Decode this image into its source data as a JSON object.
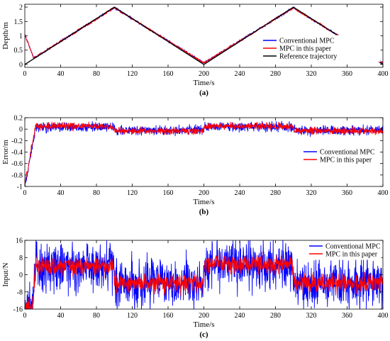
{
  "chart_data": [
    {
      "panel": "(a)",
      "type": "line",
      "xlabel": "Time/s",
      "ylabel": "Depth/m",
      "xlim": [
        0,
        400
      ],
      "ylim": [
        -0.1,
        2.1
      ],
      "xticks": [
        0,
        40,
        80,
        120,
        160,
        200,
        240,
        280,
        320,
        360,
        400
      ],
      "yticks": [
        0,
        0.5,
        1,
        1.5,
        2
      ],
      "ytick_labels": [
        "0",
        "0.5",
        "1",
        "1.5",
        "2"
      ],
      "legend_position": "right",
      "series": [
        {
          "name": "Conventional MPC",
          "color": "#0000ff",
          "x": [
            0,
            10,
            100,
            200,
            300,
            400
          ],
          "y": [
            1.05,
            0.22,
            1.98,
            0.05,
            1.98,
            0.05
          ],
          "noise": 0.02
        },
        {
          "name": "MPC in this paper",
          "color": "#ff0000",
          "x": [
            0,
            10,
            100,
            200,
            300,
            400
          ],
          "y": [
            1.05,
            0.22,
            1.98,
            0.05,
            1.98,
            0.05
          ],
          "noise": 0.02
        },
        {
          "name": "Reference trajectory",
          "color": "#000000",
          "x": [
            0,
            100,
            200,
            300,
            400
          ],
          "y": [
            0,
            2,
            0,
            2,
            0
          ],
          "noise": 0
        }
      ]
    },
    {
      "panel": "(b)",
      "type": "line",
      "xlabel": "Time/s",
      "ylabel": "Error/m",
      "xlim": [
        0,
        400
      ],
      "ylim": [
        -1,
        0.2
      ],
      "xticks": [
        0,
        40,
        80,
        120,
        160,
        200,
        240,
        280,
        320,
        360,
        400
      ],
      "yticks": [
        -1,
        -0.8,
        -0.6,
        -0.4,
        -0.2,
        0,
        0.2
      ],
      "ytick_labels": [
        "-1",
        "-0.8",
        "-0.6",
        "-0.4",
        "-0.2",
        "0",
        "0.2"
      ],
      "legend_position": "right",
      "series": [
        {
          "name": "Conventional MPC",
          "color": "#0000ff",
          "x": [
            0,
            12,
            99,
            101,
            199,
            201,
            299,
            301,
            400
          ],
          "y": [
            -1.0,
            0.03,
            0.03,
            -0.02,
            -0.02,
            0.04,
            0.04,
            -0.02,
            -0.02
          ],
          "noise": 0.04
        },
        {
          "name": "MPC in this paper",
          "color": "#ff0000",
          "x": [
            0,
            12,
            99,
            101,
            199,
            201,
            299,
            301,
            400
          ],
          "y": [
            -0.97,
            0.05,
            0.05,
            -0.03,
            -0.03,
            0.05,
            0.05,
            -0.03,
            -0.03
          ],
          "noise": 0.03
        }
      ]
    },
    {
      "panel": "(c)",
      "type": "line",
      "xlabel": "Time/s",
      "ylabel": "Input/N",
      "xlim": [
        0,
        400
      ],
      "ylim": [
        -16,
        16
      ],
      "xticks": [
        0,
        40,
        80,
        120,
        160,
        200,
        240,
        280,
        320,
        360,
        400
      ],
      "yticks": [
        -16,
        -8,
        0,
        8,
        16
      ],
      "ytick_labels": [
        "-16",
        "-8",
        "0",
        "8",
        "16"
      ],
      "legend_position": "top-right",
      "series": [
        {
          "name": "Conventional MPC",
          "color": "#0000ff",
          "x": [
            0,
            8,
            12,
            99,
            101,
            199,
            201,
            299,
            301,
            400
          ],
          "y": [
            -16,
            -16,
            4,
            4,
            -4,
            -4,
            5,
            5,
            -4,
            -4
          ],
          "noise": 5.5
        },
        {
          "name": "MPC in this paper",
          "color": "#ff0000",
          "x": [
            0,
            8,
            12,
            99,
            101,
            199,
            201,
            299,
            301,
            400
          ],
          "y": [
            -16,
            -16,
            4,
            4,
            -4,
            -4,
            5,
            5,
            -4,
            -4
          ],
          "noise": 2.2
        }
      ]
    }
  ]
}
